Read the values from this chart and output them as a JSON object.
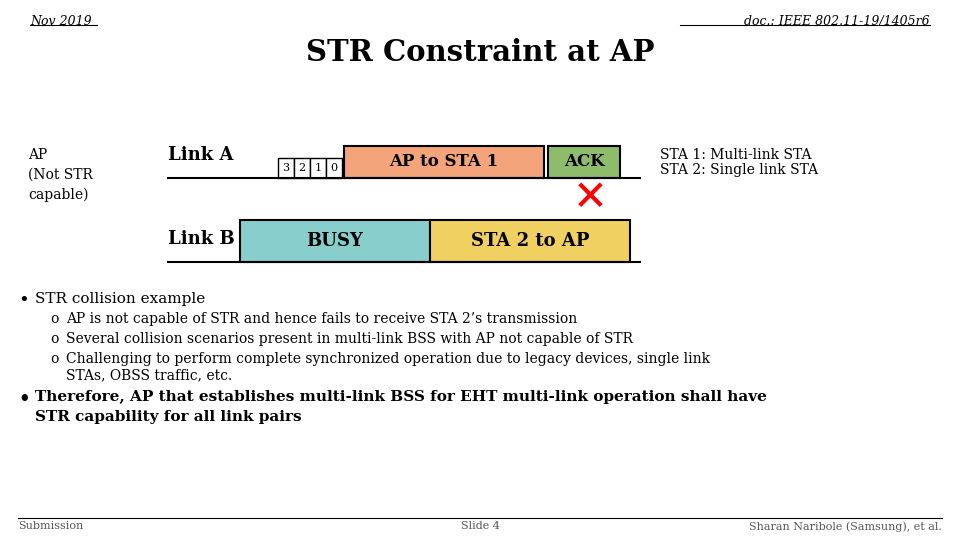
{
  "title": "STR Constraint at AP",
  "header_left": "Nov 2019",
  "header_right": "doc.: IEEE 802.11-19/1405r6",
  "ap_label": "AP\n(Not STR\ncapable)",
  "link_a_label": "Link A",
  "link_b_label": "Link B",
  "sta_note1": "STA 1: Multi-link STA",
  "sta_note2": "STA 2: Single link STA",
  "link_a_box1_text": "AP to STA 1",
  "link_a_box1_color": "#F4A47A",
  "link_a_box2_text": "ACK",
  "link_a_box2_color": "#8FBC6A",
  "link_b_box1_text": "BUSY",
  "link_b_box1_color": "#87CECC",
  "link_b_box2_text": "STA 2 to AP",
  "link_b_box2_color": "#F0D060",
  "bullet1": "STR collision example",
  "sub1a": "AP is not capable of STR and hence fails to receive STA 2’s transmission",
  "sub1b": "Several collision scenarios present in multi-link BSS with AP not capable of STR",
  "sub1c1": "Challenging to perform complete synchronized operation due to legacy devices, single link",
  "sub1c2": "STAs, OBSS traffic, etc.",
  "bullet2a": "Therefore, AP that establishes multi-link BSS for EHT multi-link operation shall have",
  "bullet2b": "STR capability for all link pairs",
  "footer_left": "Submission",
  "footer_center": "Slide 4",
  "footer_right": "Sharan Naribole (Samsung), et al.",
  "bg_color": "#FFFFFF",
  "text_color": "#000000"
}
